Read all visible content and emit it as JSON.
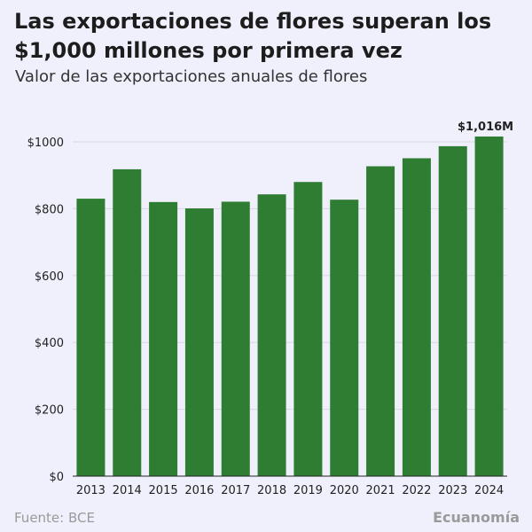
{
  "header": {
    "title": "Las exportaciones de flores superan los $1,000 millones por primera vez",
    "subtitle": "Valor de las exportaciones anuales de flores"
  },
  "footer": {
    "source": "Fuente: BCE",
    "brand": "Ecuanomía"
  },
  "colors": {
    "bar": "#2e7d32",
    "background": "#eff0fb",
    "grid": "#d8d8e0"
  },
  "chart_data": {
    "type": "bar",
    "title": "Las exportaciones de flores superan los $1,000 millones por primera vez",
    "subtitle": "Valor de las exportaciones anuales de flores",
    "xlabel": "",
    "ylabel": "",
    "categories": [
      "2013",
      "2014",
      "2015",
      "2016",
      "2017",
      "2018",
      "2019",
      "2020",
      "2021",
      "2022",
      "2023",
      "2024"
    ],
    "values": [
      830,
      918,
      820,
      801,
      821,
      843,
      880,
      827,
      927,
      951,
      987,
      1016
    ],
    "ylim": [
      0,
      1000
    ],
    "yticks": [
      0,
      200,
      400,
      600,
      800,
      1000
    ],
    "ytick_labels": [
      "$0",
      "$200",
      "$400",
      "$600",
      "$800",
      "$1000"
    ],
    "grid": true,
    "annotations": [
      {
        "category": "2024",
        "text": "$1,016M"
      }
    ]
  }
}
